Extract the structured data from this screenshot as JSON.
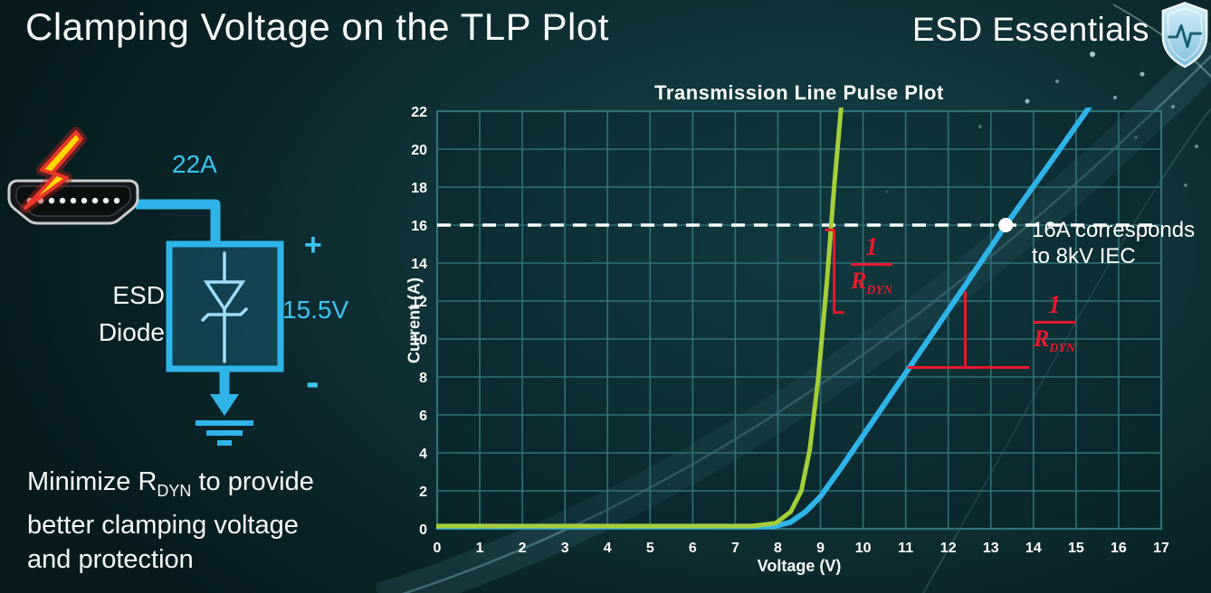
{
  "slide": {
    "title": "Clamping Voltage on the TLP Plot",
    "brand": "ESD Essentials"
  },
  "diagram": {
    "current_label": "22A",
    "device_label_line1": "ESD",
    "device_label_line2": "Diode",
    "plus": "+",
    "voltage_label": "15.5V",
    "minus": "-"
  },
  "caption": {
    "line1_pre": "Minimize R",
    "line1_sub": "DYN",
    "line1_post": " to provide",
    "line2": "better clamping voltage",
    "line3": "and protection"
  },
  "chart_data": {
    "type": "line",
    "title": "Transmission Line Pulse Plot",
    "xlabel": "Voltage (V)",
    "ylabel": "Current (A)",
    "xlim": [
      0,
      17
    ],
    "ylim": [
      0,
      22
    ],
    "xticks": [
      0,
      1,
      2,
      3,
      4,
      5,
      6,
      7,
      8,
      9,
      10,
      11,
      12,
      13,
      14,
      15,
      16,
      17
    ],
    "yticks": [
      0,
      2,
      4,
      6,
      8,
      10,
      12,
      14,
      16,
      18,
      20,
      22
    ],
    "grid": true,
    "legend": null,
    "colors": {
      "grid": "#2e7276",
      "annotation_red": "#e8192c",
      "reference_white": "#ffffff",
      "green_curve": "#a6ce39",
      "blue_curve": "#2fb4e9"
    },
    "series": [
      {
        "id": "high-rdyn-blue-curve",
        "color": "#2fb4e9",
        "width": 6,
        "points": [
          [
            0,
            0.12
          ],
          [
            7.9,
            0.12
          ],
          [
            8.3,
            0.35
          ],
          [
            8.65,
            0.9
          ],
          [
            9.0,
            1.7
          ],
          [
            9.45,
            3.1
          ],
          [
            10.3,
            5.9
          ],
          [
            11.3,
            9.2
          ],
          [
            12.3,
            12.5
          ],
          [
            13.35,
            16.0
          ],
          [
            14.4,
            19.3
          ],
          [
            15.4,
            22.5
          ]
        ]
      },
      {
        "id": "low-rdyn-green-curve",
        "color": "#a6ce39",
        "width": 5,
        "points": [
          [
            0,
            0.15
          ],
          [
            7.4,
            0.15
          ],
          [
            7.95,
            0.3
          ],
          [
            8.3,
            0.9
          ],
          [
            8.55,
            2.0
          ],
          [
            8.75,
            4.2
          ],
          [
            8.95,
            8.0
          ],
          [
            9.15,
            13.0
          ],
          [
            9.32,
            18.0
          ],
          [
            9.5,
            22.6
          ]
        ]
      }
    ],
    "reference_line": {
      "y": 16,
      "color": "#ffffff",
      "style": "dashed"
    },
    "marker": {
      "x": 13.35,
      "y": 16,
      "color": "#ffffff"
    },
    "marker_note": {
      "line1": "16A corresponds",
      "line2": "to 8kV IEC"
    },
    "slope_annotations": [
      {
        "curve": "low-rdyn-green-curve",
        "style": "bracket",
        "x": 9.32,
        "y_top": 15.75,
        "y_bottom": 11.4,
        "fraction": {
          "numerator": "1",
          "denominator_base": "R",
          "denominator_sub": "DYN"
        }
      },
      {
        "curve": "high-rdyn-blue-curve",
        "style": "right-angle",
        "x_vertical": 12.4,
        "y_top": 12.5,
        "y_bottom": 8.5,
        "x_left": 11.05,
        "x_right": 13.9,
        "fraction": {
          "numerator": "1",
          "denominator_base": "R",
          "denominator_sub": "DYN"
        }
      }
    ]
  }
}
